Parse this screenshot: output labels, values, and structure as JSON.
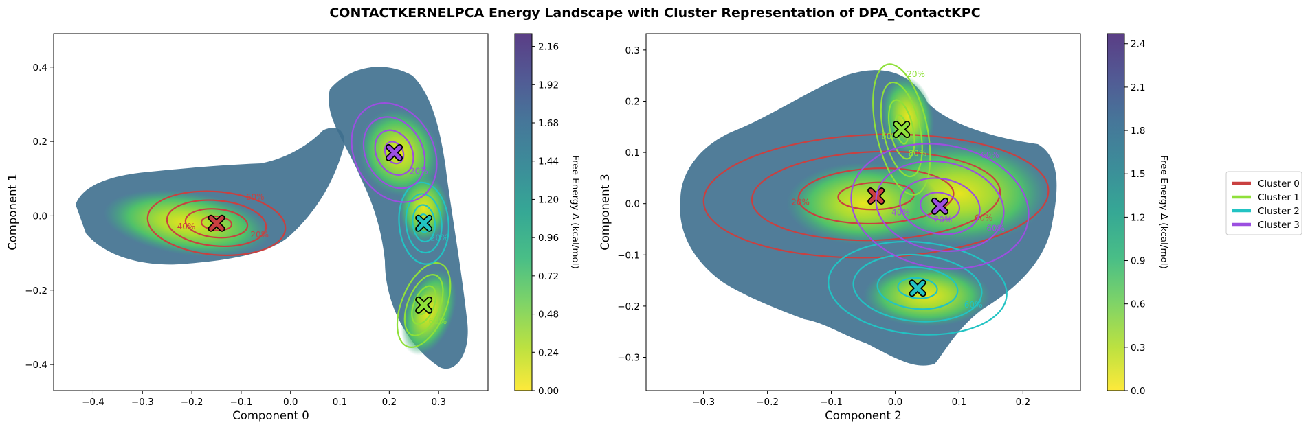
{
  "chart_data": {
    "title": "CONTACTKERNELPCA Energy Landscape with Cluster Representation of DPA_ContactKPC",
    "legend": {
      "placement": "right",
      "entries": [
        {
          "name": "Cluster 0",
          "color": "#c94040"
        },
        {
          "name": "Cluster 1",
          "color": "#8fe03a"
        },
        {
          "name": "Cluster 2",
          "color": "#22c3c3"
        },
        {
          "name": "Cluster 3",
          "color": "#9b4fe0"
        }
      ]
    },
    "panels": [
      {
        "type": "contour",
        "xlabel": "Component 0",
        "ylabel": "Component 1",
        "xlim": [
          -0.48,
          0.4
        ],
        "ylim": [
          -0.47,
          0.49
        ],
        "xticks": [
          "−0.4",
          "−0.3",
          "−0.2",
          "−0.1",
          "0.0",
          "0.1",
          "0.2",
          "0.3"
        ],
        "xtick_values": [
          -0.4,
          -0.3,
          -0.2,
          -0.1,
          0.0,
          0.1,
          0.2,
          0.3
        ],
        "yticks": [
          "−0.4",
          "−0.2",
          "0.0",
          "0.2",
          "0.4"
        ],
        "ytick_values": [
          -0.4,
          -0.2,
          0.0,
          0.2,
          0.4
        ],
        "colorbar": {
          "label": "Free Energy Δ (kcal/mol)",
          "ticks": [
            "0.00",
            "0.24",
            "0.48",
            "0.72",
            "0.96",
            "1.20",
            "1.44",
            "1.68",
            "1.92",
            "2.16"
          ],
          "tick_values": [
            0.0,
            0.24,
            0.48,
            0.72,
            0.96,
            1.2,
            1.44,
            1.68,
            1.92,
            2.16
          ],
          "range": [
            0.0,
            2.24
          ]
        },
        "basins": [
          {
            "x": -0.21,
            "y": -0.02,
            "rx": 0.17,
            "ry": 0.085,
            "rot": -8
          },
          {
            "x": 0.22,
            "y": 0.17,
            "rx": 0.08,
            "ry": 0.12,
            "rot": 25
          },
          {
            "x": 0.27,
            "y": 0.02,
            "rx": 0.05,
            "ry": 0.09,
            "rot": 0
          },
          {
            "x": 0.28,
            "y": -0.26,
            "rx": 0.05,
            "ry": 0.12,
            "rot": -20
          }
        ],
        "clusters": [
          {
            "cluster": 0,
            "center": [
              -0.15,
              -0.02
            ],
            "rx": 0.14,
            "ry": 0.085,
            "rot": -5,
            "contour_labels": [
              "20%",
              "40%",
              "60%"
            ]
          },
          {
            "cluster": 1,
            "center": [
              0.27,
              -0.24
            ],
            "rx": 0.045,
            "ry": 0.12,
            "rot": -22,
            "contour_labels": [
              "60%"
            ]
          },
          {
            "cluster": 2,
            "center": [
              0.27,
              -0.02
            ],
            "rx": 0.05,
            "ry": 0.11,
            "rot": 5,
            "contour_labels": [
              "20%"
            ]
          },
          {
            "cluster": 3,
            "center": [
              0.21,
              0.17
            ],
            "rx": 0.08,
            "ry": 0.14,
            "rot": 28,
            "contour_labels": [
              "20%"
            ]
          }
        ]
      },
      {
        "type": "contour",
        "xlabel": "Component 2",
        "ylabel": "Component 3",
        "xlim": [
          -0.39,
          0.29
        ],
        "ylim": [
          -0.365,
          0.332
        ],
        "xticks": [
          "−0.3",
          "−0.2",
          "−0.1",
          "0.0",
          "0.1",
          "0.2"
        ],
        "xtick_values": [
          -0.3,
          -0.2,
          -0.1,
          0.0,
          0.1,
          0.2
        ],
        "yticks": [
          "−0.3",
          "−0.2",
          "−0.1",
          "0.0",
          "0.1",
          "0.2",
          "0.3"
        ],
        "ytick_values": [
          -0.3,
          -0.2,
          -0.1,
          0.0,
          0.1,
          0.2,
          0.3
        ],
        "colorbar": {
          "label": "Free Energy Δ (kcal/mol)",
          "ticks": [
            "0.0",
            "0.3",
            "0.6",
            "0.9",
            "1.2",
            "1.5",
            "1.8",
            "2.1",
            "2.4"
          ],
          "tick_values": [
            0.0,
            0.3,
            0.6,
            0.9,
            1.2,
            1.5,
            1.8,
            2.1,
            2.4
          ],
          "range": [
            0.0,
            2.47
          ]
        },
        "basins": [
          {
            "x": 0.1,
            "y": 0.02,
            "rx": 0.14,
            "ry": 0.1,
            "rot": 0
          },
          {
            "x": 0.02,
            "y": 0.17,
            "rx": 0.04,
            "ry": 0.08,
            "rot": 10
          },
          {
            "x": 0.05,
            "y": -0.18,
            "rx": 0.1,
            "ry": 0.06,
            "rot": 0
          },
          {
            "x": -0.05,
            "y": 0.0,
            "rx": 0.12,
            "ry": 0.08,
            "rot": 0
          }
        ],
        "clusters": [
          {
            "cluster": 0,
            "center": [
              -0.03,
              0.015
            ],
            "rx": 0.27,
            "ry": 0.12,
            "rot": 2,
            "contour_labels": [
              "60%",
              "20%"
            ]
          },
          {
            "cluster": 1,
            "center": [
              0.01,
              0.145
            ],
            "rx": 0.04,
            "ry": 0.13,
            "rot": 12,
            "contour_labels": [
              "80%",
              "60%",
              "20%"
            ]
          },
          {
            "cluster": 2,
            "center": [
              0.035,
              -0.165
            ],
            "rx": 0.14,
            "ry": 0.09,
            "rot": -5,
            "contour_labels": [
              "60%"
            ]
          },
          {
            "cluster": 3,
            "center": [
              0.07,
              -0.005
            ],
            "rx": 0.14,
            "ry": 0.12,
            "rot": -10,
            "contour_labels": [
              "60%",
              "40%",
              "60%",
              "20%"
            ]
          }
        ]
      }
    ]
  }
}
